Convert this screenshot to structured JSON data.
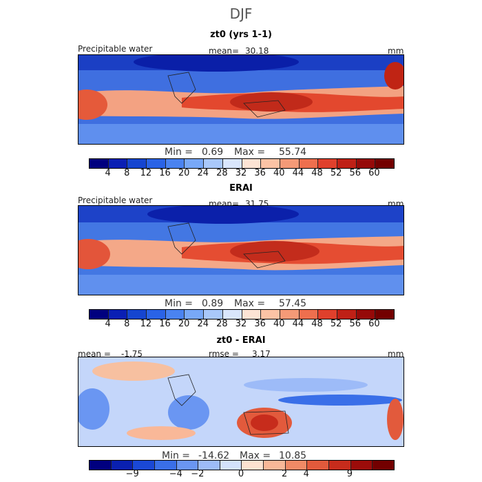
{
  "figure_title": "DJF",
  "chart_data": [
    {
      "type": "heatmap",
      "title": "zt0 (yrs 1-1)",
      "variable": "Precipitable water",
      "mean_label": "mean=",
      "mean": "30.18",
      "units": "mm",
      "min_label": "Min =",
      "min": "0.69",
      "max_label": "Max =",
      "max": "55.74",
      "colorbar_ticks": [
        "4",
        "8",
        "12",
        "16",
        "20",
        "24",
        "28",
        "32",
        "36",
        "40",
        "44",
        "48",
        "52",
        "56",
        "60"
      ],
      "colorbar_colors": [
        "#00007f",
        "#0a1fb4",
        "#1545d0",
        "#2a63e6",
        "#4a83f0",
        "#78a8f7",
        "#a9c8fa",
        "#d9e6fc",
        "#fde4d4",
        "#fbc3a5",
        "#f59a77",
        "#ee6f4e",
        "#e0402c",
        "#bf2016",
        "#960a09",
        "#730000"
      ]
    },
    {
      "type": "heatmap",
      "title": "ERAI",
      "variable": "Precipitable water",
      "mean_label": "mean=",
      "mean": "31.75",
      "units": "mm",
      "min_label": "Min =",
      "min": "0.89",
      "max_label": "Max =",
      "max": "57.45",
      "colorbar_ticks": [
        "4",
        "8",
        "12",
        "16",
        "20",
        "24",
        "28",
        "32",
        "36",
        "40",
        "44",
        "48",
        "52",
        "56",
        "60"
      ],
      "colorbar_colors": [
        "#00007f",
        "#0a1fb4",
        "#1545d0",
        "#2a63e6",
        "#4a83f0",
        "#78a8f7",
        "#a9c8fa",
        "#d9e6fc",
        "#fde4d4",
        "#fbc3a5",
        "#f59a77",
        "#ee6f4e",
        "#e0402c",
        "#bf2016",
        "#960a09",
        "#730000"
      ]
    },
    {
      "type": "heatmap",
      "title": "zt0 - ERAI",
      "mean_label": "mean =",
      "mean": "-1.75",
      "rmse_label": "rmse =",
      "rmse": "3.17",
      "units": "mm",
      "min_label": "Min =",
      "min": "-14.62",
      "max_label": "Max =",
      "max": "10.85",
      "colorbar_ticks": [
        "−9",
        "−4",
        "−2",
        "0",
        "2",
        "4",
        "9"
      ],
      "colorbar_colors": [
        "#00007f",
        "#0a20b0",
        "#1a48d6",
        "#3a6fe8",
        "#6a96f2",
        "#9dbbf8",
        "#d3e2fc",
        "#fde2d0",
        "#f9b898",
        "#f08a66",
        "#e25a3c",
        "#c72c1c",
        "#9c0c0a",
        "#730000"
      ]
    }
  ]
}
